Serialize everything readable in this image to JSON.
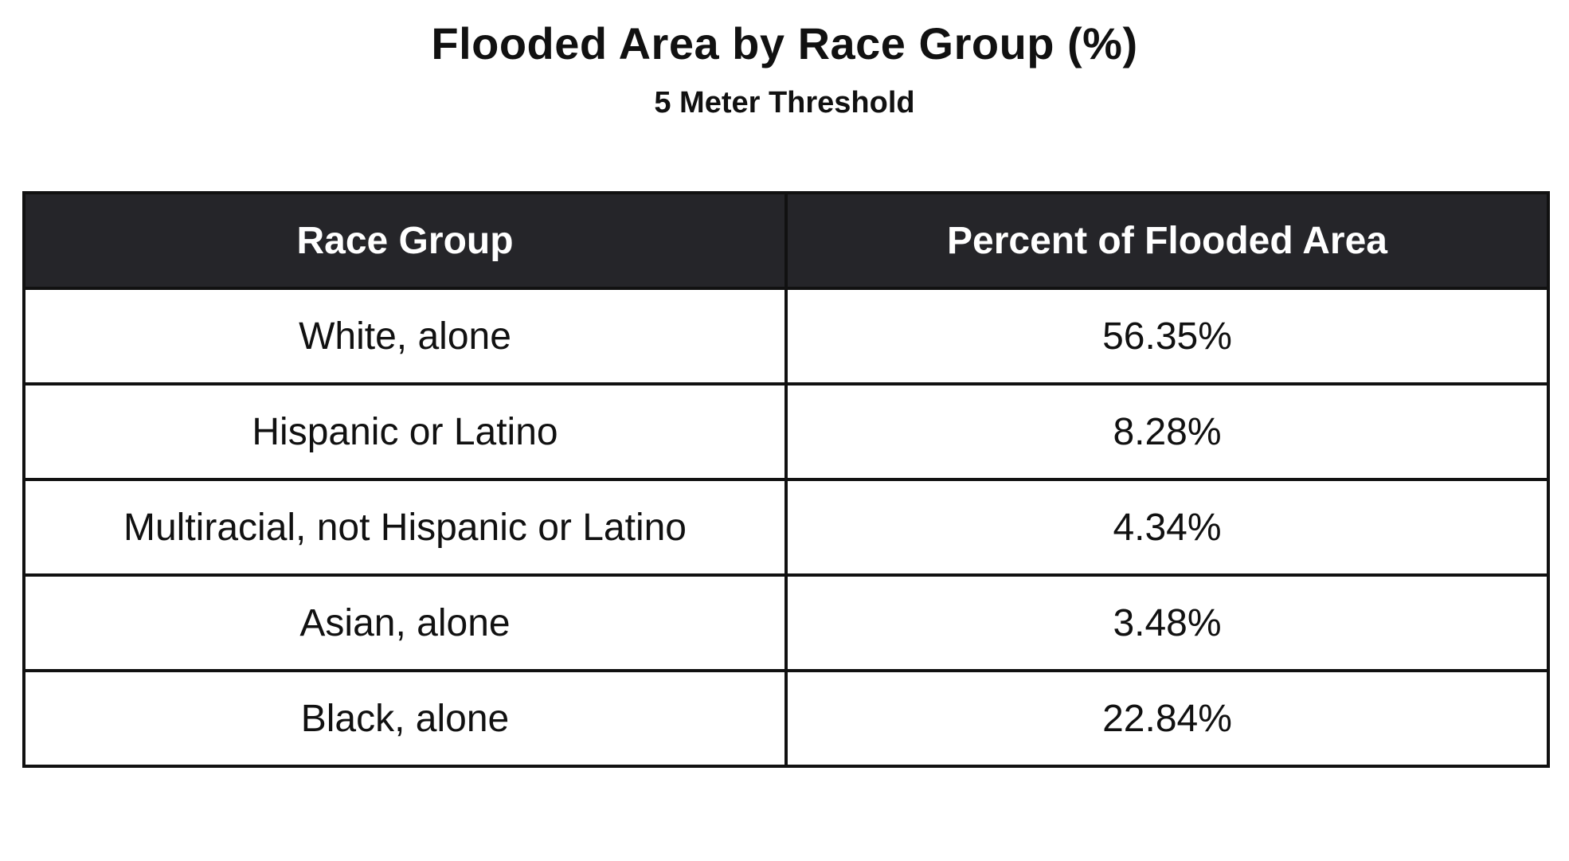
{
  "chart_data": {
    "type": "table",
    "title": "Flooded Area by Race Group (%)",
    "subtitle": "5 Meter Threshold",
    "columns": [
      "Race Group",
      "Percent of Flooded Area"
    ],
    "rows": [
      [
        "White, alone",
        "56.35%"
      ],
      [
        "Hispanic or Latino",
        "8.28%"
      ],
      [
        "Multiracial, not Hispanic or Latino",
        "4.34%"
      ],
      [
        "Asian, alone",
        "3.48%"
      ],
      [
        "Black, alone",
        "22.84%"
      ]
    ],
    "colors": {
      "header_bg": "#252529",
      "header_text": "#ffffff",
      "border": "#111111"
    }
  }
}
